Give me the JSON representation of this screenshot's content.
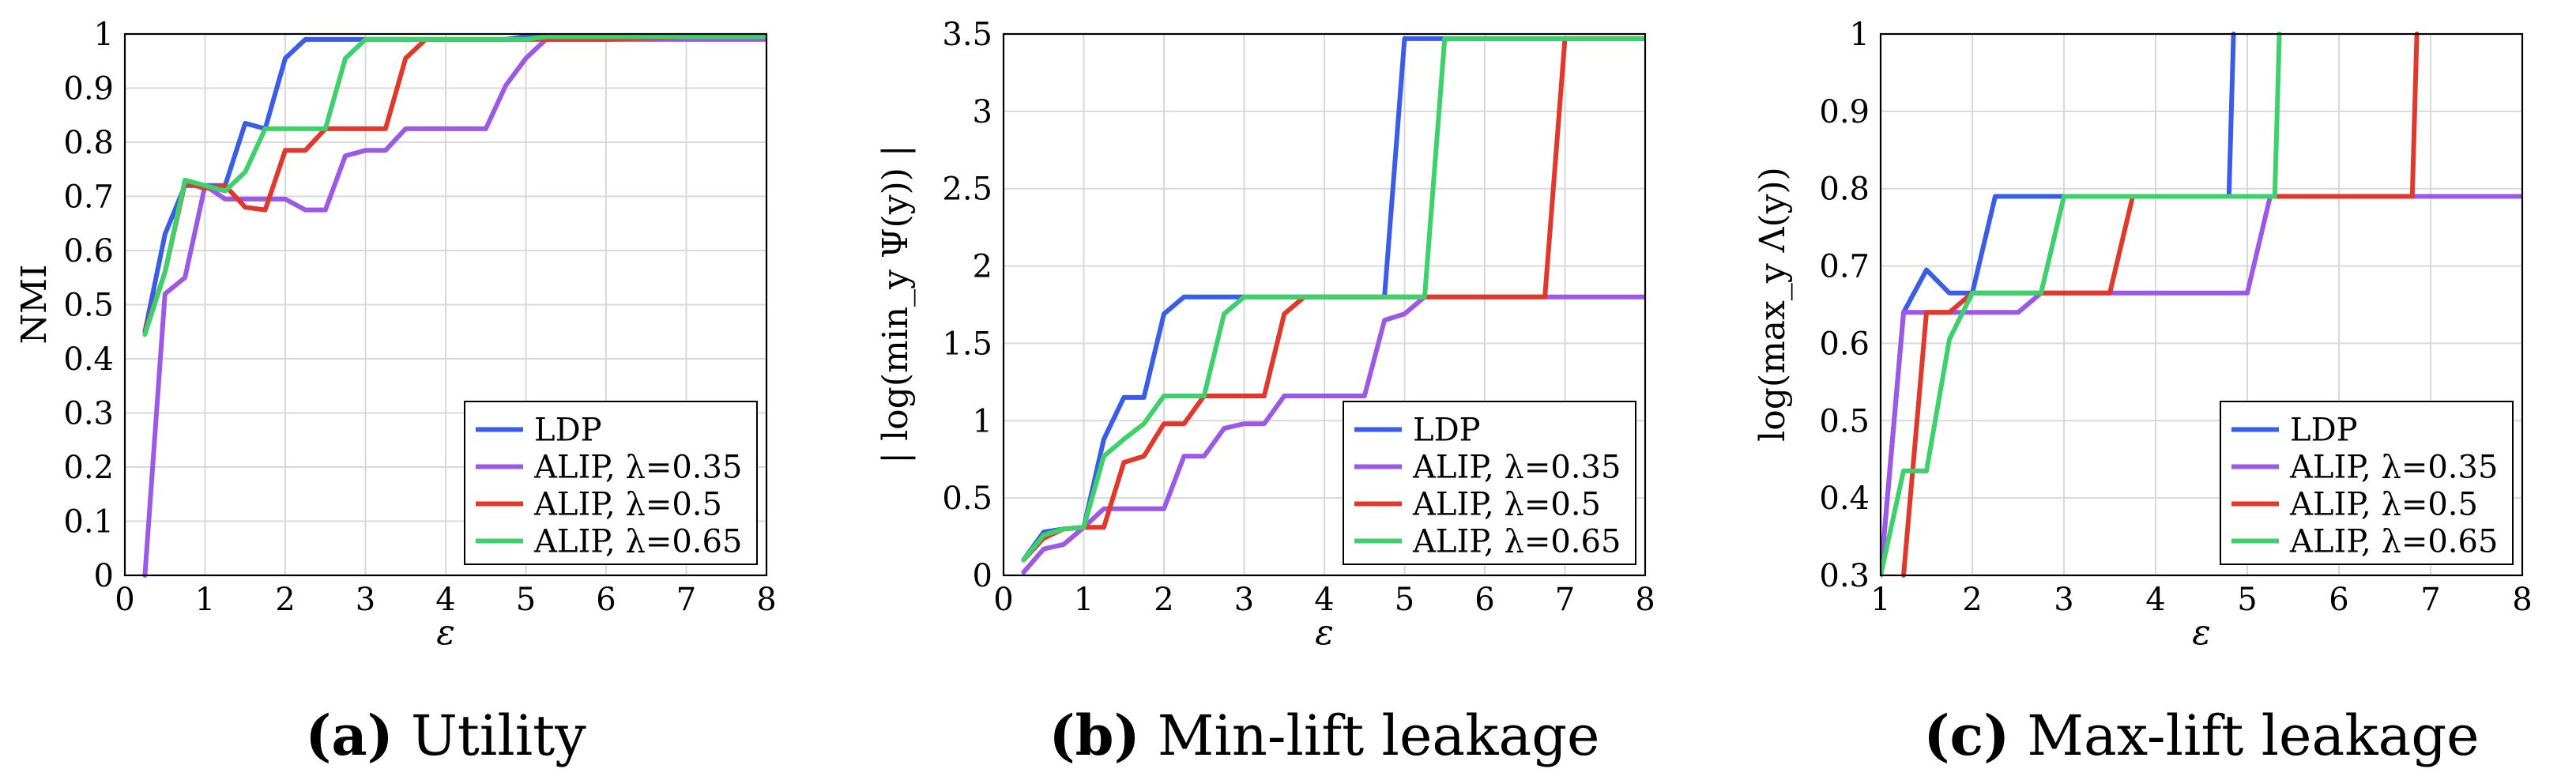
{
  "colors": {
    "LDP": "#3a5de8",
    "ALIP_035": "#9b59e6",
    "ALIP_05": "#e0392b",
    "ALIP_065": "#3ed16b"
  },
  "chart_data": [
    {
      "type": "line",
      "panel": "a",
      "caption": {
        "letter": "(a)",
        "text": "Utility"
      },
      "xlabel": "ε",
      "ylabel": "NMI",
      "xlim": [
        0,
        8
      ],
      "ylim": [
        0,
        1
      ],
      "xticks": [
        "0",
        "1",
        "2",
        "3",
        "4",
        "5",
        "6",
        "7",
        "8"
      ],
      "yticks": [
        "0",
        "0.1",
        "0.2",
        "0.3",
        "0.4",
        "0.5",
        "0.6",
        "0.7",
        "0.8",
        "0.9",
        "1"
      ],
      "grid": true,
      "legend_position": "bottom-right",
      "series": [
        {
          "name": "LDP",
          "color_key": "LDP",
          "x": [
            0.25,
            0.5,
            0.75,
            1,
            1.25,
            1.5,
            1.75,
            2,
            2.25,
            2.5,
            2.75,
            3,
            3.25,
            3.5,
            3.75,
            4,
            4.25,
            4.5,
            4.75,
            5,
            5.25,
            5.5,
            6,
            7,
            8
          ],
          "y": [
            0.45,
            0.63,
            0.72,
            0.72,
            0.72,
            0.835,
            0.825,
            0.955,
            0.99,
            0.99,
            0.99,
            0.99,
            0.99,
            0.99,
            0.99,
            0.99,
            0.99,
            0.99,
            0.99,
            0.995,
            0.995,
            0.995,
            0.995,
            0.995,
            0.995
          ]
        },
        {
          "name": "ALIP, λ=0.35",
          "color_key": "ALIP_035",
          "x": [
            0.25,
            0.5,
            0.75,
            1,
            1.25,
            1.5,
            1.75,
            2,
            2.25,
            2.5,
            2.75,
            3,
            3.25,
            3.5,
            3.75,
            4,
            4.25,
            4.5,
            4.75,
            5,
            5.25,
            5.5,
            6,
            7,
            8
          ],
          "y": [
            0,
            0.52,
            0.55,
            0.72,
            0.695,
            0.695,
            0.695,
            0.695,
            0.675,
            0.675,
            0.775,
            0.785,
            0.785,
            0.825,
            0.825,
            0.825,
            0.825,
            0.825,
            0.905,
            0.955,
            0.99,
            0.99,
            0.99,
            0.99,
            0.99
          ]
        },
        {
          "name": "ALIP, λ=0.5",
          "color_key": "ALIP_05",
          "x": [
            0.25,
            0.5,
            0.75,
            1,
            1.25,
            1.5,
            1.75,
            2,
            2.25,
            2.5,
            2.75,
            3,
            3.25,
            3.5,
            3.75,
            4,
            4.25,
            4.5,
            4.75,
            5,
            5.25,
            5.5,
            6,
            7,
            8
          ],
          "y": [
            0.45,
            0.56,
            0.725,
            0.715,
            0.72,
            0.68,
            0.675,
            0.785,
            0.785,
            0.825,
            0.825,
            0.825,
            0.825,
            0.955,
            0.99,
            0.99,
            0.99,
            0.99,
            0.99,
            0.99,
            0.99,
            0.99,
            0.99,
            0.995,
            0.995
          ]
        },
        {
          "name": "ALIP, λ=0.65",
          "color_key": "ALIP_065",
          "x": [
            0.25,
            0.5,
            0.75,
            1,
            1.25,
            1.5,
            1.75,
            2,
            2.25,
            2.5,
            2.75,
            3,
            3.25,
            3.5,
            3.75,
            4,
            4.25,
            4.5,
            4.75,
            5,
            5.25,
            5.5,
            6,
            7,
            8
          ],
          "y": [
            0.445,
            0.56,
            0.73,
            0.72,
            0.71,
            0.745,
            0.825,
            0.825,
            0.825,
            0.825,
            0.955,
            0.99,
            0.99,
            0.99,
            0.99,
            0.99,
            0.99,
            0.99,
            0.99,
            0.99,
            0.995,
            0.995,
            0.995,
            0.995,
            0.995
          ]
        }
      ]
    },
    {
      "type": "line",
      "panel": "b",
      "caption": {
        "letter": "(b)",
        "text": "Min-lift leakage"
      },
      "xlabel": "ε",
      "ylabel": "| log(min_y Ψ(y)) |",
      "xlim": [
        0,
        8
      ],
      "ylim": [
        0,
        3.5
      ],
      "xticks": [
        "0",
        "1",
        "2",
        "3",
        "4",
        "5",
        "6",
        "7",
        "8"
      ],
      "yticks": [
        "0",
        "0.5",
        "1",
        "1.5",
        "2",
        "2.5",
        "3",
        "3.5"
      ],
      "grid": true,
      "legend_position": "bottom-right",
      "series": [
        {
          "name": "LDP",
          "color_key": "LDP",
          "x": [
            0.25,
            0.5,
            0.75,
            1,
            1.25,
            1.5,
            1.75,
            2,
            2.25,
            2.5,
            2.75,
            3,
            3.25,
            3.5,
            3.75,
            4,
            4.25,
            4.5,
            4.75,
            5,
            5.25,
            5.5,
            6,
            7,
            8
          ],
          "y": [
            0.1,
            0.28,
            0.3,
            0.31,
            0.88,
            1.15,
            1.15,
            1.69,
            1.8,
            1.8,
            1.8,
            1.8,
            1.8,
            1.8,
            1.8,
            1.8,
            1.8,
            1.8,
            1.8,
            3.47,
            3.47,
            3.47,
            3.47,
            3.47,
            3.47
          ]
        },
        {
          "name": "ALIP, λ=0.35",
          "color_key": "ALIP_035",
          "x": [
            0.25,
            0.5,
            0.75,
            1,
            1.25,
            1.5,
            1.75,
            2,
            2.25,
            2.5,
            2.75,
            3,
            3.25,
            3.5,
            3.75,
            4,
            4.25,
            4.5,
            4.75,
            5,
            5.25,
            5.5,
            6,
            7,
            8
          ],
          "y": [
            0.02,
            0.17,
            0.2,
            0.31,
            0.43,
            0.43,
            0.43,
            0.43,
            0.77,
            0.77,
            0.95,
            0.98,
            0.98,
            1.16,
            1.16,
            1.16,
            1.16,
            1.16,
            1.65,
            1.69,
            1.8,
            1.8,
            1.8,
            1.8,
            1.8
          ]
        },
        {
          "name": "ALIP, λ=0.5",
          "color_key": "ALIP_05",
          "x": [
            0.25,
            0.5,
            0.75,
            1,
            1.25,
            1.5,
            1.75,
            2,
            2.25,
            2.5,
            2.75,
            3,
            3.25,
            3.5,
            3.75,
            4,
            4.25,
            4.5,
            4.75,
            5,
            5.25,
            5.5,
            6,
            6.75,
            7,
            8
          ],
          "y": [
            0.1,
            0.24,
            0.3,
            0.31,
            0.31,
            0.73,
            0.77,
            0.98,
            0.98,
            1.16,
            1.16,
            1.16,
            1.16,
            1.69,
            1.8,
            1.8,
            1.8,
            1.8,
            1.8,
            1.8,
            1.8,
            1.8,
            1.8,
            1.8,
            3.47,
            3.47
          ]
        },
        {
          "name": "ALIP, λ=0.65",
          "color_key": "ALIP_065",
          "x": [
            0.25,
            0.5,
            0.75,
            1,
            1.25,
            1.5,
            1.75,
            2,
            2.25,
            2.5,
            2.75,
            3,
            3.25,
            3.5,
            3.75,
            4,
            4.25,
            4.5,
            4.75,
            5,
            5.25,
            5.5,
            6,
            7,
            8
          ],
          "y": [
            0.1,
            0.26,
            0.3,
            0.31,
            0.77,
            0.88,
            0.98,
            1.16,
            1.16,
            1.16,
            1.69,
            1.8,
            1.8,
            1.8,
            1.8,
            1.8,
            1.8,
            1.8,
            1.8,
            1.8,
            1.8,
            3.47,
            3.47,
            3.47,
            3.47
          ]
        }
      ]
    },
    {
      "type": "line",
      "panel": "c",
      "caption": {
        "letter": "(c)",
        "text": "Max-lift leakage"
      },
      "xlabel": "ε",
      "ylabel": "log(max_y Λ(y))",
      "xlim": [
        1,
        8
      ],
      "ylim": [
        0.3,
        1
      ],
      "xticks": [
        "1",
        "2",
        "3",
        "4",
        "5",
        "6",
        "7",
        "8"
      ],
      "yticks": [
        "0.3",
        "0.4",
        "0.5",
        "0.6",
        "0.7",
        "0.8",
        "0.9",
        "1"
      ],
      "grid": true,
      "legend_position": "bottom-right",
      "series": [
        {
          "name": "LDP",
          "color_key": "LDP",
          "x": [
            1,
            1.25,
            1.5,
            1.75,
            2,
            2.25,
            2.5,
            2.75,
            3,
            3.25,
            3.5,
            3.75,
            4,
            4.25,
            4.5,
            4.75,
            4.8,
            4.85
          ],
          "y": [
            0.3,
            0.64,
            0.695,
            0.665,
            0.665,
            0.79,
            0.79,
            0.79,
            0.79,
            0.79,
            0.79,
            0.79,
            0.79,
            0.79,
            0.79,
            0.79,
            0.79,
            1.0
          ]
        },
        {
          "name": "ALIP, λ=0.35",
          "color_key": "ALIP_035",
          "x": [
            1,
            1.25,
            1.5,
            1.75,
            2,
            2.25,
            2.5,
            2.75,
            3,
            3.25,
            3.5,
            3.75,
            4,
            4.25,
            4.5,
            4.75,
            5,
            5.25,
            5.5,
            6,
            7,
            8
          ],
          "y": [
            0.3,
            0.64,
            0.64,
            0.64,
            0.64,
            0.64,
            0.64,
            0.665,
            0.665,
            0.665,
            0.665,
            0.665,
            0.665,
            0.665,
            0.665,
            0.665,
            0.665,
            0.79,
            0.79,
            0.79,
            0.79,
            0.79
          ]
        },
        {
          "name": "ALIP, λ=0.5",
          "color_key": "ALIP_05",
          "x": [
            1.25,
            1.5,
            1.75,
            2,
            2.25,
            2.5,
            2.75,
            3,
            3.25,
            3.5,
            3.75,
            4,
            4.25,
            4.5,
            4.75,
            5,
            5.25,
            5.5,
            6,
            6.75,
            6.8,
            6.85
          ],
          "y": [
            0.3,
            0.64,
            0.64,
            0.665,
            0.665,
            0.665,
            0.665,
            0.665,
            0.665,
            0.665,
            0.79,
            0.79,
            0.79,
            0.79,
            0.79,
            0.79,
            0.79,
            0.79,
            0.79,
            0.79,
            0.79,
            1.0
          ]
        },
        {
          "name": "ALIP, λ=0.65",
          "color_key": "ALIP_065",
          "x": [
            1,
            1.25,
            1.5,
            1.75,
            2,
            2.25,
            2.5,
            2.75,
            3,
            3.25,
            3.5,
            3.75,
            4,
            4.25,
            4.5,
            4.75,
            5,
            5.25,
            5.3,
            5.35
          ],
          "y": [
            0.3,
            0.435,
            0.435,
            0.605,
            0.665,
            0.665,
            0.665,
            0.665,
            0.79,
            0.79,
            0.79,
            0.79,
            0.79,
            0.79,
            0.79,
            0.79,
            0.79,
            0.79,
            0.79,
            1.0
          ]
        }
      ]
    }
  ]
}
